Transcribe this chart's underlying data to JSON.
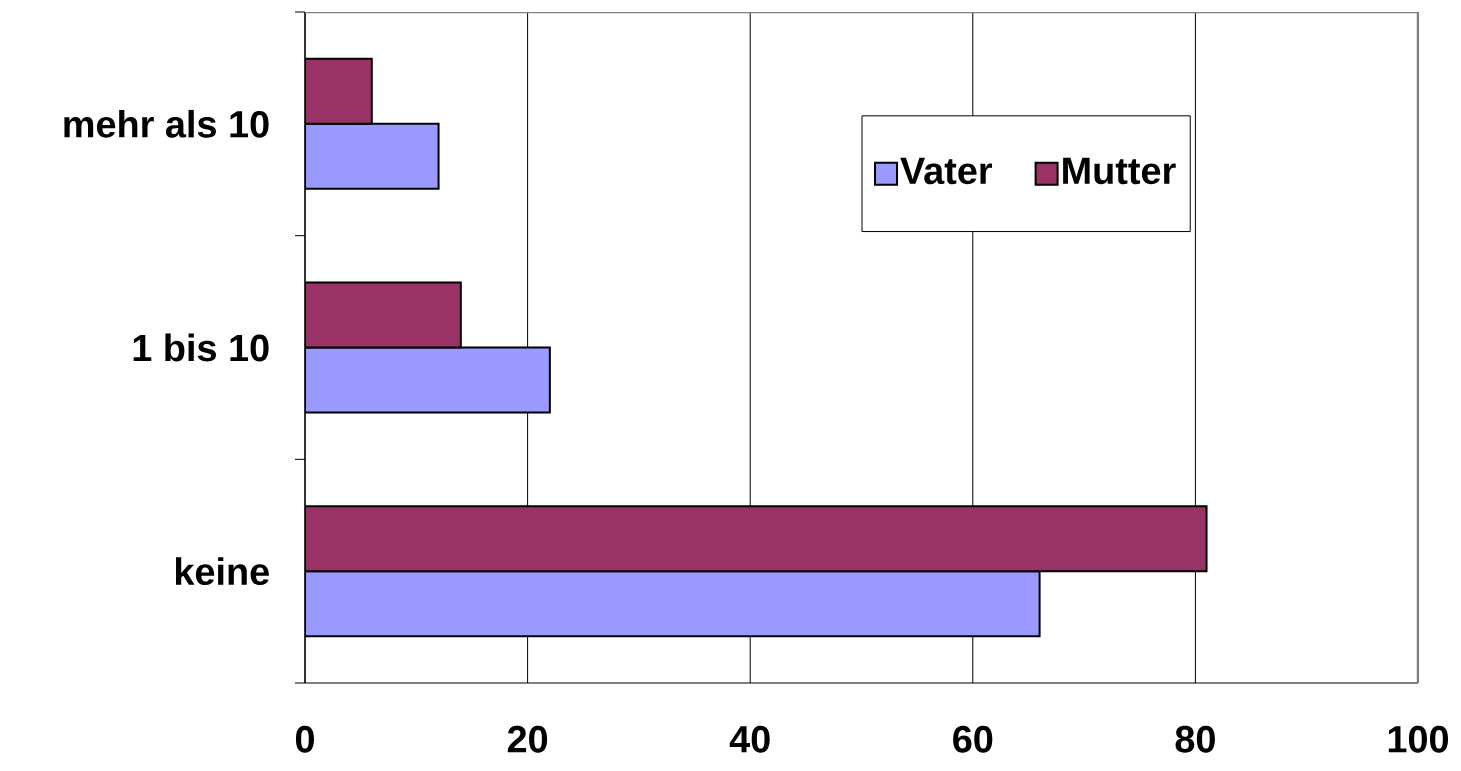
{
  "chart_data": {
    "type": "bar",
    "orientation": "horizontal",
    "categories": [
      "mehr als 10",
      "1 bis 10",
      "keine"
    ],
    "series": [
      {
        "name": "Vater",
        "color": "#9999ff",
        "values": [
          12,
          22,
          66
        ]
      },
      {
        "name": "Mutter",
        "color": "#993366",
        "values": [
          6,
          14,
          81
        ]
      }
    ],
    "xlim": [
      0,
      100
    ],
    "xticks": [
      0,
      20,
      40,
      60,
      80,
      100
    ],
    "grid": "x",
    "legend": "top right"
  }
}
